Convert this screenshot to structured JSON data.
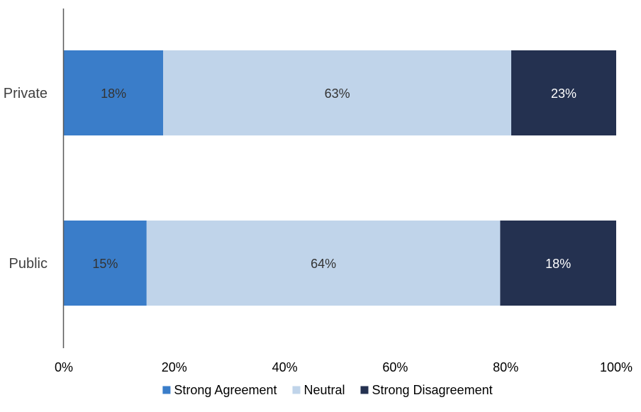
{
  "chart_data": {
    "type": "bar",
    "orientation": "horizontal",
    "stacked": true,
    "percent": true,
    "categories": [
      "Private",
      "Public"
    ],
    "series": [
      {
        "name": "Strong Agreement",
        "color": "#3a7dc9",
        "label_color": "#333333",
        "values": [
          18,
          15
        ],
        "labels": [
          "18%",
          "15%"
        ]
      },
      {
        "name": "Neutral",
        "color": "#c0d4ea",
        "label_color": "#333333",
        "values": [
          63,
          64
        ],
        "labels": [
          "63%",
          "64%"
        ]
      },
      {
        "name": "Strong Disagreement",
        "color": "#243150",
        "label_color": "#ffffff",
        "values": [
          23,
          18
        ],
        "labels": [
          "23%",
          "18%"
        ]
      }
    ],
    "xlim": [
      0,
      100
    ],
    "xticks": [
      "0%",
      "20%",
      "40%",
      "60%",
      "80%",
      "100%"
    ],
    "grid": false,
    "legend_position": "bottom"
  }
}
